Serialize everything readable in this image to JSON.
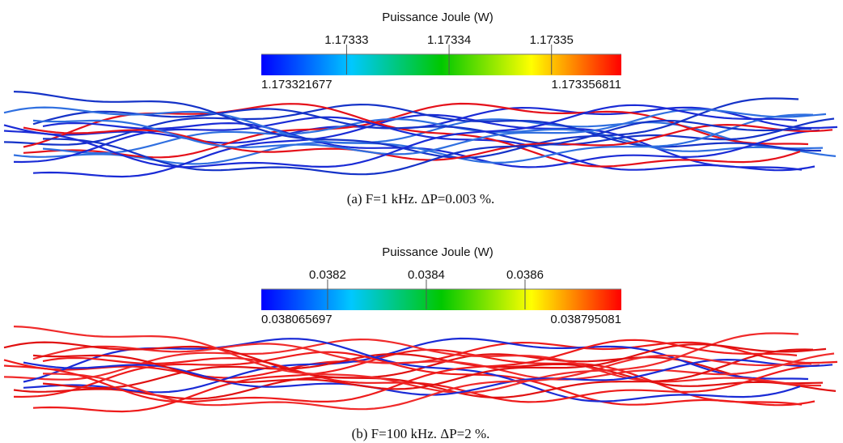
{
  "panels": [
    {
      "colorbar": {
        "title": "Puissance Joule (W)",
        "lim": [
          1.173321677,
          1.173356811
        ],
        "ticks": [
          1.17333,
          1.17334,
          1.17335
        ]
      },
      "caption": "(a) F=1 kHz. ΔP=0.003 %."
    },
    {
      "colorbar": {
        "title": "Puissance Joule (W)",
        "lim": [
          0.038065697,
          0.038795081
        ],
        "ticks": [
          0.0382,
          0.0384,
          0.0386
        ]
      },
      "caption": "(b) F=100 kHz. ΔP=2 %."
    }
  ]
}
